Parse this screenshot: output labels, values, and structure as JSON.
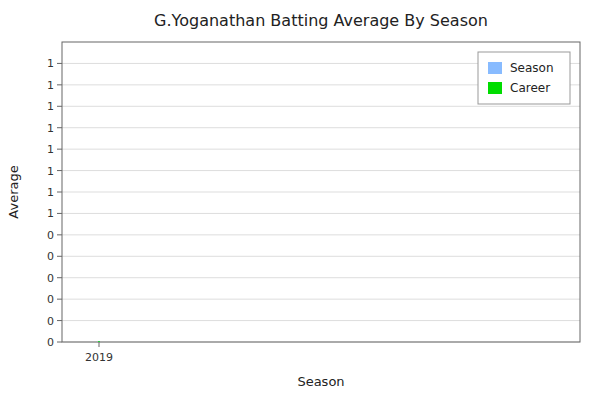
{
  "chart_data": {
    "type": "line",
    "title": "G.Yoganathan Batting Average By Season",
    "xlabel": "Season",
    "ylabel": "Average",
    "x": [
      2019
    ],
    "series": [
      {
        "name": "Season",
        "color": "#88bbff",
        "values": [
          0.0
        ]
      },
      {
        "name": "Career",
        "color": "#00dd00",
        "values": [
          0.0
        ]
      }
    ],
    "xlim": [
      2018.5,
      2025.5
    ],
    "xticks": [
      2019
    ],
    "ylim": [
      0,
      1.4
    ],
    "yticks": [
      0,
      {
        "value": 0.1,
        "label": "0"
      },
      {
        "value": 0.2,
        "label": "0"
      },
      {
        "value": 0.3,
        "label": "0"
      },
      {
        "value": 0.4,
        "label": "0"
      },
      {
        "value": 0.5,
        "label": "0"
      },
      {
        "value": 0.6,
        "label": "1"
      },
      {
        "value": 0.7,
        "label": "1"
      },
      {
        "value": 0.8,
        "label": "1"
      },
      {
        "value": 0.9,
        "label": "1"
      },
      1,
      {
        "value": 1.1,
        "label": "1"
      },
      {
        "value": 1.2,
        "label": "1"
      },
      {
        "value": 1.3,
        "label": "1"
      }
    ],
    "grid": true,
    "legend": "upper-right"
  }
}
